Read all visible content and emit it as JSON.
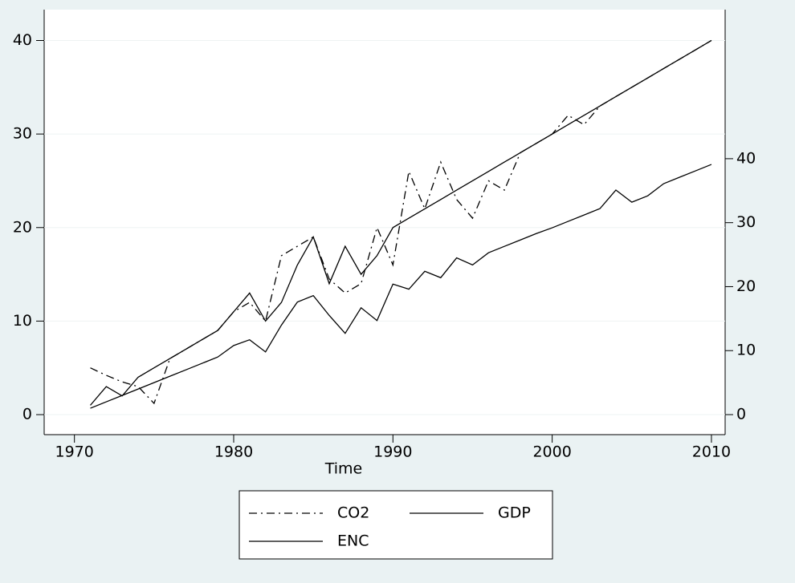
{
  "chart_data": {
    "type": "line",
    "x_label": "Time",
    "x": [
      1971,
      1972,
      1973,
      1974,
      1975,
      1976,
      1977,
      1978,
      1979,
      1980,
      1981,
      1982,
      1983,
      1984,
      1985,
      1986,
      1987,
      1988,
      1989,
      1990,
      1991,
      1992,
      1993,
      1994,
      1995,
      1996,
      1997,
      1998,
      1999,
      2000,
      2001,
      2002,
      2003,
      2004,
      2005,
      2006,
      2007,
      2008,
      2009,
      2010
    ],
    "series": [
      {
        "name": "CO2",
        "color": "#000000",
        "style": "dash-dot",
        "axis": "y",
        "values": [
          5,
          4.2,
          3.5,
          3,
          1.2,
          6,
          7,
          8,
          9,
          11,
          12,
          10,
          17,
          18,
          19,
          14.5,
          13,
          14,
          20,
          16,
          26,
          22,
          27,
          23,
          21,
          25,
          24,
          28,
          29,
          30,
          32,
          31,
          33,
          34,
          35,
          36,
          37,
          38,
          39,
          40
        ]
      },
      {
        "name": "GDP",
        "color": "#000000",
        "style": "solid",
        "axis": "y",
        "values": [
          1,
          3,
          2,
          4,
          5,
          6,
          7,
          8,
          9,
          11,
          13,
          10,
          12,
          16,
          19,
          14,
          18,
          15,
          17,
          20,
          21,
          22,
          23,
          24,
          25,
          26,
          27,
          28,
          29,
          30,
          31,
          32,
          33,
          34,
          35,
          36,
          37,
          38,
          39,
          40
        ]
      },
      {
        "name": "ENC",
        "color": "#000000",
        "style": "solid",
        "axis": "y2",
        "values": [
          1,
          2,
          3,
          4,
          5,
          6,
          7,
          8,
          9,
          10.8,
          11.7,
          9.8,
          14,
          17.6,
          18.6,
          15.5,
          12.7,
          16.7,
          14.7,
          20.4,
          19.6,
          22.4,
          21.4,
          24.5,
          23.4,
          25.3,
          26.3,
          27.3,
          28.3,
          29.2,
          30.2,
          31.2,
          32.2,
          35.1,
          33.2,
          34.2,
          36.1,
          37.1,
          38.1,
          39.1
        ]
      }
    ],
    "xlim": [
      1968.1,
      2010.86
    ],
    "xticks": [
      1970,
      1980,
      1990,
      2000,
      2010
    ],
    "ylim": [
      -2.14,
      43.3
    ],
    "yticks": [
      0,
      10,
      20,
      30,
      40
    ],
    "y2lim": [
      -3.13,
      63.3
    ],
    "y2ticks": [
      0,
      10,
      20,
      30,
      40
    ],
    "grid": true
  }
}
